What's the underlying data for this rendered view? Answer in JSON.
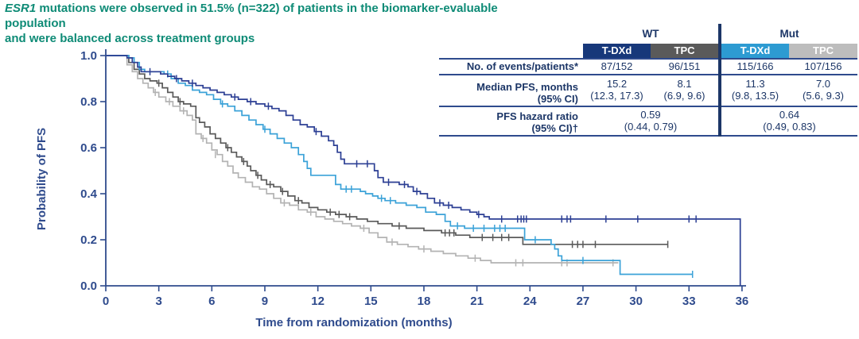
{
  "headline": {
    "gene": "ESR1",
    "line1_rest": " mutations were observed in 51.5% (n=322) of patients in the biomarker-evaluable population",
    "line2": "and were balanced across treatment groups",
    "color": "#0e8b76"
  },
  "table": {
    "group_headers": [
      "WT",
      "Mut"
    ],
    "column_headers": [
      "T-DXd",
      "TPC",
      "T-DXd",
      "TPC"
    ],
    "column_header_colors": [
      "#17387a",
      "#5a5a5a",
      "#2d9bd2",
      "#bdbdbd"
    ],
    "rows": {
      "events": {
        "label": "No. of events/patients*",
        "values": [
          "87/152",
          "96/151",
          "115/166",
          "107/156"
        ]
      },
      "median": {
        "label": "Median PFS, months",
        "label2": "(95% CI)",
        "values": [
          "15.2",
          "8.1",
          "11.3",
          "7.0"
        ],
        "ci": [
          "(12.3, 17.3)",
          "(6.9, 9.6)",
          "(9.8, 13.5)",
          "(5.6, 9.3)"
        ]
      },
      "hazard": {
        "label": "PFS hazard ratio",
        "label2": "(95% CI)†",
        "values": [
          "0.59",
          "0.64"
        ],
        "ci": [
          "(0.44, 0.79)",
          "(0.49, 0.83)"
        ]
      }
    }
  },
  "chart_data": {
    "type": "line",
    "subtype": "kaplan-meier-step",
    "title": "",
    "xlabel": "Time from randomization (months)",
    "ylabel": "Probability of PFS",
    "xlim": [
      0,
      36
    ],
    "ylim": [
      0.0,
      1.0
    ],
    "x_ticks": [
      0,
      3,
      6,
      9,
      12,
      15,
      18,
      21,
      24,
      27,
      30,
      33,
      36
    ],
    "y_ticks": [
      "0.0",
      "0.2",
      "0.4",
      "0.6",
      "0.8",
      "1.0"
    ],
    "grid": false,
    "legend_position": "none (series identified by table header colors)",
    "axis_color": "#2f4b8d",
    "series": [
      {
        "name": "T-DXd WT",
        "color": "#2c3f94",
        "median_months": 15.2,
        "steps": [
          [
            0,
            1.0
          ],
          [
            1.2,
            0.99
          ],
          [
            1.5,
            0.97
          ],
          [
            1.8,
            0.95
          ],
          [
            2.0,
            0.93
          ],
          [
            3.1,
            0.92
          ],
          [
            3.5,
            0.91
          ],
          [
            3.9,
            0.9
          ],
          [
            4.3,
            0.89
          ],
          [
            4.7,
            0.88
          ],
          [
            5.1,
            0.87
          ],
          [
            5.5,
            0.86
          ],
          [
            5.9,
            0.85
          ],
          [
            6.3,
            0.84
          ],
          [
            6.7,
            0.83
          ],
          [
            7.1,
            0.82
          ],
          [
            7.5,
            0.81
          ],
          [
            8.0,
            0.8
          ],
          [
            8.5,
            0.79
          ],
          [
            9.0,
            0.78
          ],
          [
            9.4,
            0.77
          ],
          [
            9.8,
            0.76
          ],
          [
            10.2,
            0.74
          ],
          [
            10.6,
            0.72
          ],
          [
            11.0,
            0.7
          ],
          [
            11.4,
            0.69
          ],
          [
            11.8,
            0.67
          ],
          [
            12.2,
            0.65
          ],
          [
            12.6,
            0.63
          ],
          [
            12.9,
            0.61
          ],
          [
            13.1,
            0.58
          ],
          [
            13.3,
            0.55
          ],
          [
            13.5,
            0.53
          ],
          [
            15.2,
            0.5
          ],
          [
            15.4,
            0.47
          ],
          [
            15.7,
            0.45
          ],
          [
            16.6,
            0.44
          ],
          [
            17.1,
            0.43
          ],
          [
            17.4,
            0.41
          ],
          [
            17.8,
            0.4
          ],
          [
            18.2,
            0.38
          ],
          [
            18.6,
            0.36
          ],
          [
            19.1,
            0.35
          ],
          [
            19.6,
            0.34
          ],
          [
            20.1,
            0.33
          ],
          [
            20.6,
            0.32
          ],
          [
            21.0,
            0.31
          ],
          [
            21.4,
            0.3
          ],
          [
            21.7,
            0.29
          ],
          [
            35.9,
            0.0
          ]
        ],
        "censors": [
          [
            2.5,
            0.93
          ],
          [
            4.0,
            0.9
          ],
          [
            4.9,
            0.88
          ],
          [
            7.3,
            0.82
          ],
          [
            8.2,
            0.8
          ],
          [
            9.2,
            0.78
          ],
          [
            11.9,
            0.67
          ],
          [
            14.2,
            0.53
          ],
          [
            14.8,
            0.53
          ],
          [
            16.0,
            0.45
          ],
          [
            16.9,
            0.44
          ],
          [
            17.6,
            0.41
          ],
          [
            18.9,
            0.36
          ],
          [
            19.4,
            0.35
          ],
          [
            21.1,
            0.31
          ],
          [
            22.4,
            0.29
          ],
          [
            23.3,
            0.29
          ],
          [
            23.5,
            0.29
          ],
          [
            23.65,
            0.29
          ],
          [
            23.8,
            0.29
          ],
          [
            25.8,
            0.29
          ],
          [
            26.1,
            0.29
          ],
          [
            26.3,
            0.29
          ],
          [
            28.3,
            0.29
          ],
          [
            30.1,
            0.29
          ],
          [
            33.0,
            0.29
          ],
          [
            33.4,
            0.29
          ]
        ]
      },
      {
        "name": "T-DXd Mut",
        "color": "#3ba2d8",
        "median_months": 11.3,
        "steps": [
          [
            0,
            1.0
          ],
          [
            1.3,
            0.99
          ],
          [
            1.6,
            0.97
          ],
          [
            1.9,
            0.94
          ],
          [
            2.2,
            0.93
          ],
          [
            3.3,
            0.92
          ],
          [
            3.7,
            0.9
          ],
          [
            4.1,
            0.88
          ],
          [
            4.5,
            0.87
          ],
          [
            4.9,
            0.85
          ],
          [
            5.3,
            0.84
          ],
          [
            5.7,
            0.83
          ],
          [
            6.1,
            0.81
          ],
          [
            6.5,
            0.79
          ],
          [
            6.9,
            0.78
          ],
          [
            7.3,
            0.76
          ],
          [
            7.7,
            0.74
          ],
          [
            8.1,
            0.72
          ],
          [
            8.5,
            0.7
          ],
          [
            8.9,
            0.68
          ],
          [
            9.3,
            0.66
          ],
          [
            9.7,
            0.64
          ],
          [
            10.1,
            0.62
          ],
          [
            10.5,
            0.6
          ],
          [
            10.9,
            0.57
          ],
          [
            11.2,
            0.54
          ],
          [
            11.4,
            0.51
          ],
          [
            11.6,
            0.48
          ],
          [
            13.0,
            0.44
          ],
          [
            13.3,
            0.42
          ],
          [
            14.4,
            0.41
          ],
          [
            14.7,
            0.4
          ],
          [
            15.1,
            0.39
          ],
          [
            15.4,
            0.38
          ],
          [
            15.8,
            0.37
          ],
          [
            16.4,
            0.36
          ],
          [
            17.0,
            0.35
          ],
          [
            17.6,
            0.34
          ],
          [
            18.1,
            0.32
          ],
          [
            18.7,
            0.31
          ],
          [
            19.2,
            0.28
          ],
          [
            19.5,
            0.26
          ],
          [
            20.3,
            0.25
          ],
          [
            23.7,
            0.2
          ],
          [
            25.2,
            0.18
          ],
          [
            25.4,
            0.16
          ],
          [
            25.6,
            0.13
          ],
          [
            25.8,
            0.11
          ],
          [
            29.1,
            0.05
          ],
          [
            33.2,
            0.05
          ]
        ],
        "censors": [
          [
            3.5,
            0.92
          ],
          [
            6.6,
            0.79
          ],
          [
            9.0,
            0.68
          ],
          [
            13.6,
            0.42
          ],
          [
            13.9,
            0.42
          ],
          [
            15.6,
            0.38
          ],
          [
            16.1,
            0.37
          ],
          [
            19.9,
            0.26
          ],
          [
            20.8,
            0.25
          ],
          [
            21.4,
            0.25
          ],
          [
            22.0,
            0.25
          ],
          [
            22.3,
            0.25
          ],
          [
            22.6,
            0.25
          ],
          [
            24.3,
            0.2
          ],
          [
            27.0,
            0.11
          ],
          [
            33.2,
            0.05
          ]
        ]
      },
      {
        "name": "TPC WT",
        "color": "#5a5a5a",
        "median_months": 8.1,
        "steps": [
          [
            0,
            1.0
          ],
          [
            1.3,
            0.97
          ],
          [
            1.6,
            0.94
          ],
          [
            1.9,
            0.92
          ],
          [
            2.2,
            0.9
          ],
          [
            2.5,
            0.89
          ],
          [
            2.9,
            0.88
          ],
          [
            3.2,
            0.86
          ],
          [
            3.5,
            0.84
          ],
          [
            3.8,
            0.82
          ],
          [
            4.1,
            0.8
          ],
          [
            4.4,
            0.79
          ],
          [
            4.8,
            0.78
          ],
          [
            5.1,
            0.73
          ],
          [
            5.3,
            0.71
          ],
          [
            5.6,
            0.69
          ],
          [
            5.9,
            0.66
          ],
          [
            6.2,
            0.64
          ],
          [
            6.5,
            0.62
          ],
          [
            6.8,
            0.6
          ],
          [
            7.1,
            0.58
          ],
          [
            7.4,
            0.56
          ],
          [
            7.7,
            0.54
          ],
          [
            8.0,
            0.52
          ],
          [
            8.2,
            0.5
          ],
          [
            8.5,
            0.48
          ],
          [
            8.8,
            0.46
          ],
          [
            9.1,
            0.44
          ],
          [
            9.5,
            0.43
          ],
          [
            9.9,
            0.41
          ],
          [
            10.3,
            0.39
          ],
          [
            10.7,
            0.37
          ],
          [
            11.1,
            0.36
          ],
          [
            11.5,
            0.34
          ],
          [
            12.0,
            0.33
          ],
          [
            12.5,
            0.32
          ],
          [
            13.0,
            0.31
          ],
          [
            13.6,
            0.3
          ],
          [
            14.2,
            0.29
          ],
          [
            14.8,
            0.28
          ],
          [
            15.4,
            0.27
          ],
          [
            16.2,
            0.26
          ],
          [
            17.0,
            0.25
          ],
          [
            18.0,
            0.24
          ],
          [
            19.0,
            0.23
          ],
          [
            19.8,
            0.22
          ],
          [
            20.6,
            0.21
          ],
          [
            23.6,
            0.18
          ],
          [
            31.8,
            0.18
          ]
        ],
        "censors": [
          [
            3.0,
            0.88
          ],
          [
            4.2,
            0.8
          ],
          [
            6.9,
            0.6
          ],
          [
            7.8,
            0.54
          ],
          [
            8.6,
            0.48
          ],
          [
            9.3,
            0.44
          ],
          [
            10.0,
            0.41
          ],
          [
            10.9,
            0.37
          ],
          [
            12.7,
            0.32
          ],
          [
            13.2,
            0.31
          ],
          [
            13.8,
            0.3
          ],
          [
            16.6,
            0.26
          ],
          [
            19.2,
            0.23
          ],
          [
            19.45,
            0.23
          ],
          [
            19.7,
            0.23
          ],
          [
            21.3,
            0.21
          ],
          [
            21.9,
            0.21
          ],
          [
            22.4,
            0.21
          ],
          [
            22.8,
            0.21
          ],
          [
            26.4,
            0.18
          ],
          [
            26.7,
            0.18
          ],
          [
            27.0,
            0.18
          ],
          [
            27.7,
            0.18
          ],
          [
            31.8,
            0.18
          ]
        ]
      },
      {
        "name": "TPC Mut",
        "color": "#b3b3b3",
        "median_months": 7.0,
        "steps": [
          [
            0,
            1.0
          ],
          [
            1.2,
            0.96
          ],
          [
            1.5,
            0.93
          ],
          [
            1.8,
            0.9
          ],
          [
            2.1,
            0.88
          ],
          [
            2.4,
            0.86
          ],
          [
            2.7,
            0.84
          ],
          [
            3.0,
            0.82
          ],
          [
            3.4,
            0.8
          ],
          [
            3.8,
            0.78
          ],
          [
            4.2,
            0.76
          ],
          [
            4.6,
            0.74
          ],
          [
            4.9,
            0.72
          ],
          [
            5.1,
            0.66
          ],
          [
            5.4,
            0.64
          ],
          [
            5.7,
            0.62
          ],
          [
            6.0,
            0.59
          ],
          [
            6.3,
            0.57
          ],
          [
            6.6,
            0.54
          ],
          [
            6.9,
            0.52
          ],
          [
            7.2,
            0.49
          ],
          [
            7.5,
            0.47
          ],
          [
            7.9,
            0.45
          ],
          [
            8.3,
            0.43
          ],
          [
            8.7,
            0.42
          ],
          [
            9.1,
            0.4
          ],
          [
            9.5,
            0.38
          ],
          [
            9.9,
            0.36
          ],
          [
            10.4,
            0.35
          ],
          [
            10.9,
            0.33
          ],
          [
            11.4,
            0.32
          ],
          [
            11.9,
            0.3
          ],
          [
            12.4,
            0.29
          ],
          [
            12.9,
            0.28
          ],
          [
            13.4,
            0.27
          ],
          [
            13.9,
            0.26
          ],
          [
            14.4,
            0.25
          ],
          [
            14.9,
            0.23
          ],
          [
            15.4,
            0.21
          ],
          [
            15.9,
            0.19
          ],
          [
            16.5,
            0.18
          ],
          [
            17.1,
            0.17
          ],
          [
            17.7,
            0.16
          ],
          [
            18.4,
            0.15
          ],
          [
            19.1,
            0.14
          ],
          [
            19.8,
            0.13
          ],
          [
            20.5,
            0.12
          ],
          [
            21.2,
            0.11
          ],
          [
            21.8,
            0.1
          ],
          [
            29.0,
            0.1
          ]
        ],
        "censors": [
          [
            2.8,
            0.84
          ],
          [
            3.6,
            0.8
          ],
          [
            4.4,
            0.76
          ],
          [
            5.5,
            0.64
          ],
          [
            6.2,
            0.57
          ],
          [
            10.1,
            0.36
          ],
          [
            11.6,
            0.32
          ],
          [
            14.6,
            0.25
          ],
          [
            16.2,
            0.19
          ],
          [
            18.0,
            0.16
          ],
          [
            20.9,
            0.12
          ],
          [
            23.2,
            0.1
          ],
          [
            23.6,
            0.1
          ],
          [
            25.8,
            0.1
          ],
          [
            26.1,
            0.1
          ],
          [
            28.7,
            0.1
          ]
        ]
      }
    ]
  }
}
